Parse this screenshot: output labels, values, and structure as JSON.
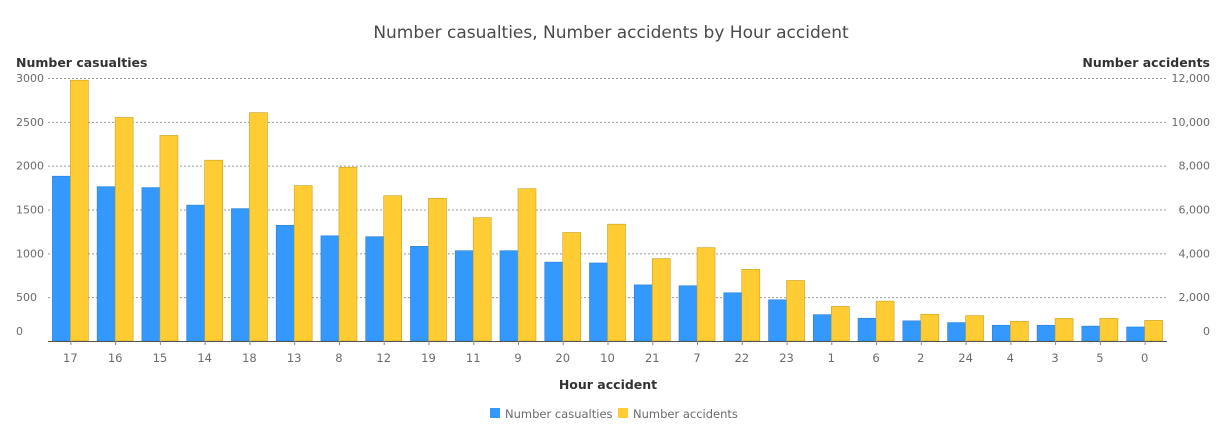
{
  "chart_data": {
    "type": "bar",
    "title": "Number casualties, Number accidents by Hour accident",
    "xlabel": "Hour accident",
    "ylabel_left": "Number casualties",
    "ylabel_right": "Number accidents",
    "ylim_left": [
      0,
      3000
    ],
    "ylim_right": [
      0,
      12000
    ],
    "yticks_left": [
      "0",
      "500",
      "1000",
      "1500",
      "2000",
      "2500",
      "3000"
    ],
    "yticks_right": [
      "0",
      "2,000",
      "4,000",
      "6,000",
      "8,000",
      "10,000",
      "12,000"
    ],
    "grid": true,
    "legend_position": "bottom",
    "categories": [
      "17",
      "16",
      "15",
      "14",
      "18",
      "13",
      "8",
      "12",
      "19",
      "11",
      "9",
      "20",
      "10",
      "21",
      "7",
      "22",
      "23",
      "1",
      "6",
      "2",
      "24",
      "4",
      "3",
      "5",
      "0"
    ],
    "series": [
      {
        "name": "Number casualties",
        "axis": "left",
        "color": "#3399ff",
        "values": [
          1880,
          1760,
          1750,
          1550,
          1510,
          1320,
          1200,
          1190,
          1080,
          1030,
          1030,
          900,
          890,
          640,
          630,
          550,
          470,
          300,
          260,
          230,
          210,
          180,
          180,
          170,
          160
        ]
      },
      {
        "name": "Number accidents",
        "axis": "right",
        "color": "#ffcc33",
        "values": [
          11900,
          10200,
          9380,
          8250,
          10420,
          7090,
          7930,
          6630,
          6510,
          5630,
          6950,
          4950,
          5330,
          3760,
          4260,
          3270,
          2760,
          1580,
          1820,
          1220,
          1160,
          900,
          1030,
          1030,
          940
        ]
      }
    ]
  }
}
